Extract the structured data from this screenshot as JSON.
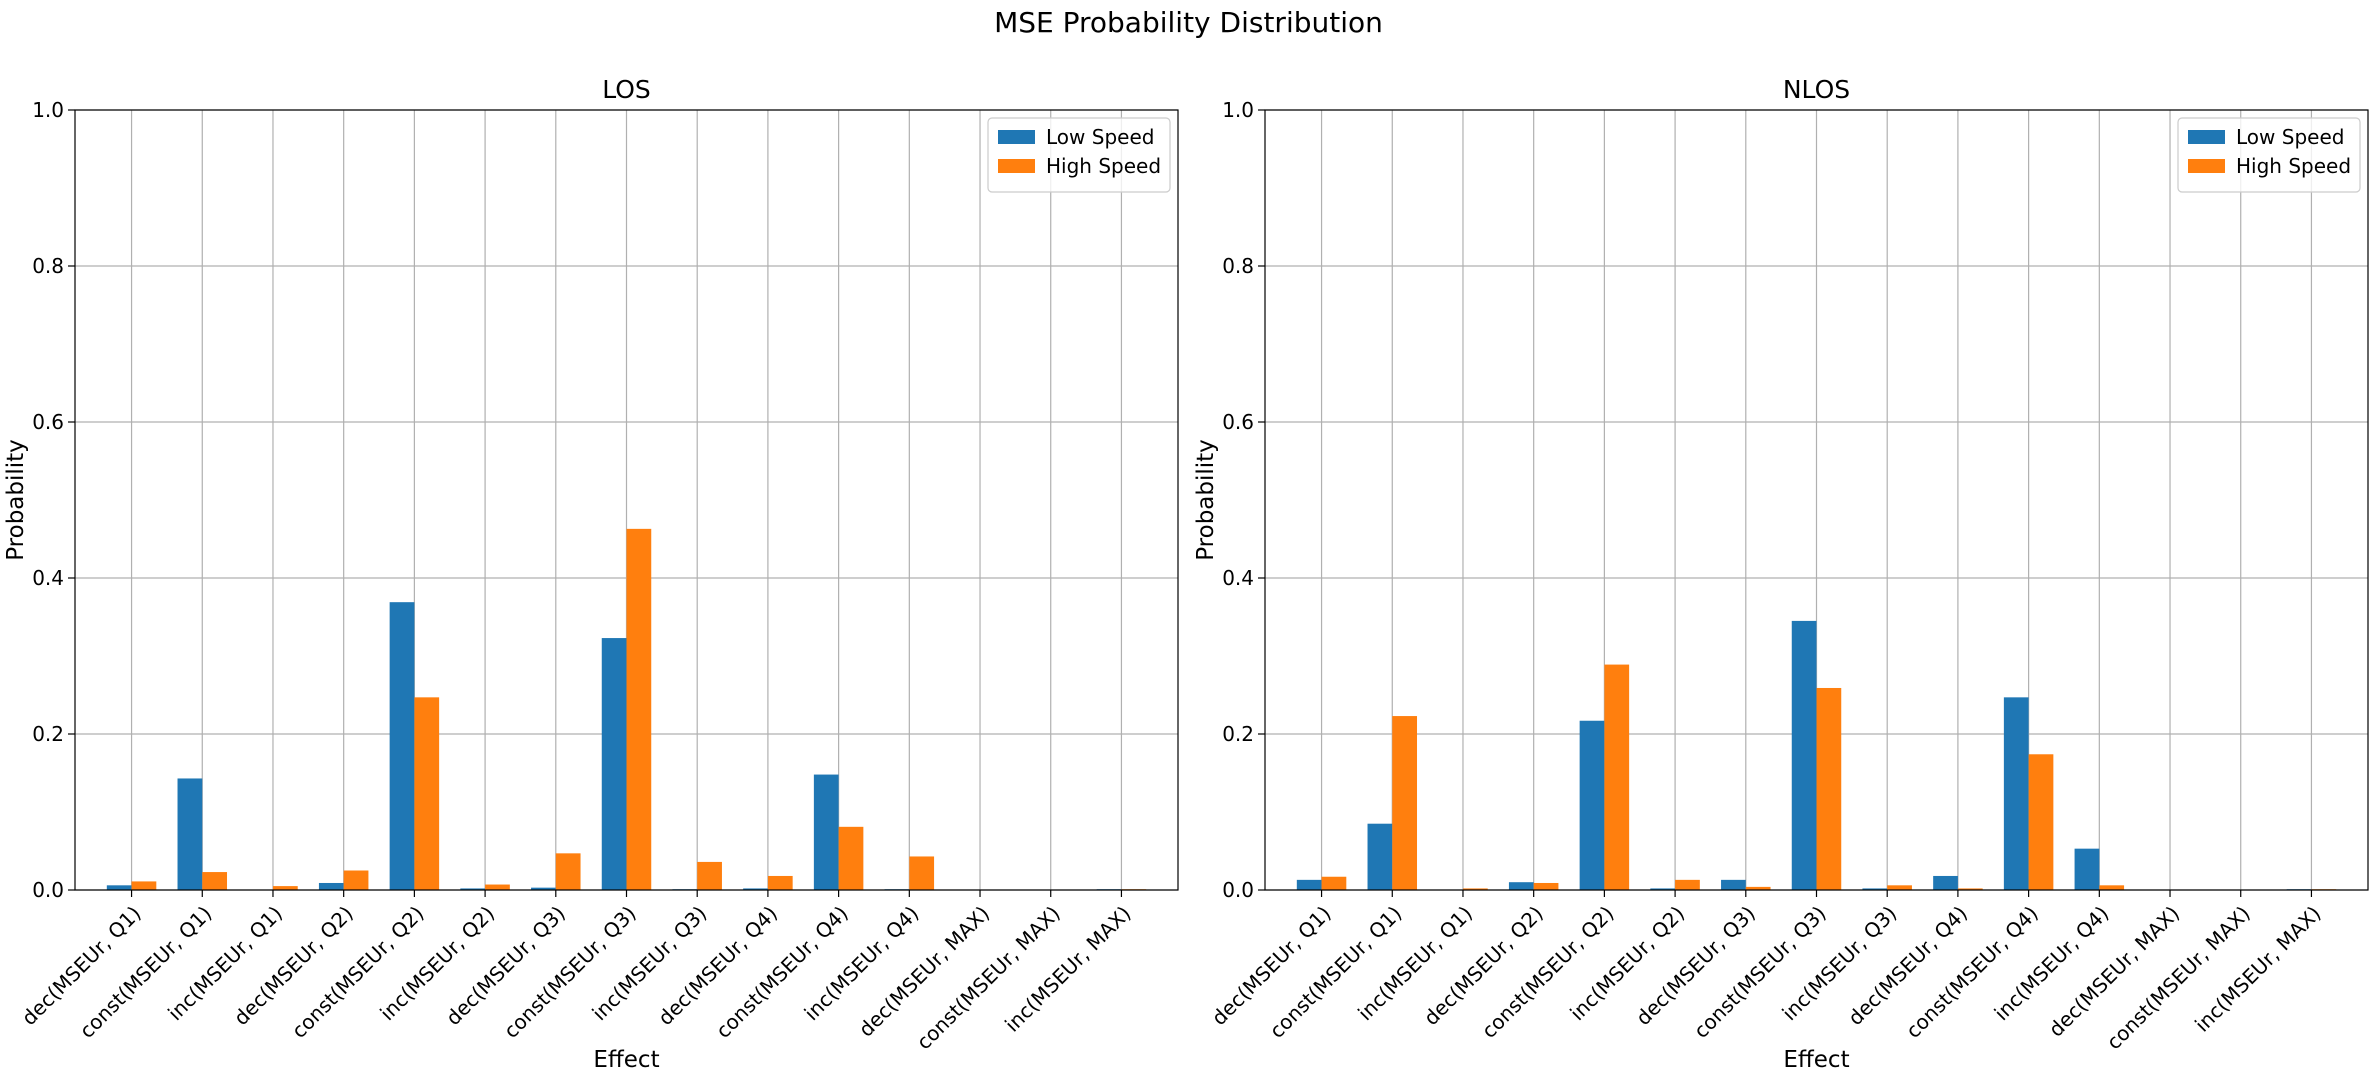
{
  "suptitle": "MSE Probability Distribution",
  "colors": {
    "low_speed": "#1f77b4",
    "high_speed": "#ff7f0e"
  },
  "chart_data": [
    {
      "type": "bar",
      "title": "LOS",
      "xlabel": "Effect",
      "ylabel": "Probability",
      "ylim": [
        0,
        1.0
      ],
      "yticks": [
        "0.0",
        "0.2",
        "0.4",
        "0.6",
        "0.8",
        "1.0"
      ],
      "grid": true,
      "legend_position": "top-right",
      "categories": [
        "dec(MSEUr, Q1)",
        "const(MSEUr, Q1)",
        "inc(MSEUr, Q1)",
        "dec(MSEUr, Q2)",
        "const(MSEUr, Q2)",
        "inc(MSEUr, Q2)",
        "dec(MSEUr, Q3)",
        "const(MSEUr, Q3)",
        "inc(MSEUr, Q3)",
        "dec(MSEUr, Q4)",
        "const(MSEUr, Q4)",
        "inc(MSEUr, Q4)",
        "dec(MSEUr, MAX)",
        "const(MSEUr, MAX)",
        "inc(MSEUr, MAX)"
      ],
      "series": [
        {
          "name": "Low Speed",
          "values": [
            0.006,
            0.143,
            0.0,
            0.009,
            0.369,
            0.002,
            0.003,
            0.323,
            0.001,
            0.002,
            0.148,
            0.001,
            0.0,
            0.0,
            0.001
          ]
        },
        {
          "name": "High Speed",
          "values": [
            0.011,
            0.023,
            0.005,
            0.025,
            0.247,
            0.007,
            0.047,
            0.463,
            0.036,
            0.018,
            0.081,
            0.043,
            0.0,
            0.0,
            0.001
          ]
        }
      ]
    },
    {
      "type": "bar",
      "title": "NLOS",
      "xlabel": "Effect",
      "ylabel": "Probability",
      "ylim": [
        0,
        1.0
      ],
      "yticks": [
        "0.0",
        "0.2",
        "0.4",
        "0.6",
        "0.8",
        "1.0"
      ],
      "grid": true,
      "legend_position": "top-right",
      "categories": [
        "dec(MSEUr, Q1)",
        "const(MSEUr, Q1)",
        "inc(MSEUr, Q1)",
        "dec(MSEUr, Q2)",
        "const(MSEUr, Q2)",
        "inc(MSEUr, Q2)",
        "dec(MSEUr, Q3)",
        "const(MSEUr, Q3)",
        "inc(MSEUr, Q3)",
        "dec(MSEUr, Q4)",
        "const(MSEUr, Q4)",
        "inc(MSEUr, Q4)",
        "dec(MSEUr, MAX)",
        "const(MSEUr, MAX)",
        "inc(MSEUr, MAX)"
      ],
      "series": [
        {
          "name": "Low Speed",
          "values": [
            0.013,
            0.085,
            0.0,
            0.01,
            0.217,
            0.002,
            0.013,
            0.345,
            0.002,
            0.018,
            0.247,
            0.053,
            0.0,
            0.0,
            0.001
          ]
        },
        {
          "name": "High Speed",
          "values": [
            0.017,
            0.223,
            0.002,
            0.009,
            0.289,
            0.013,
            0.004,
            0.259,
            0.006,
            0.002,
            0.174,
            0.006,
            0.0,
            0.0,
            0.001
          ]
        }
      ]
    }
  ]
}
